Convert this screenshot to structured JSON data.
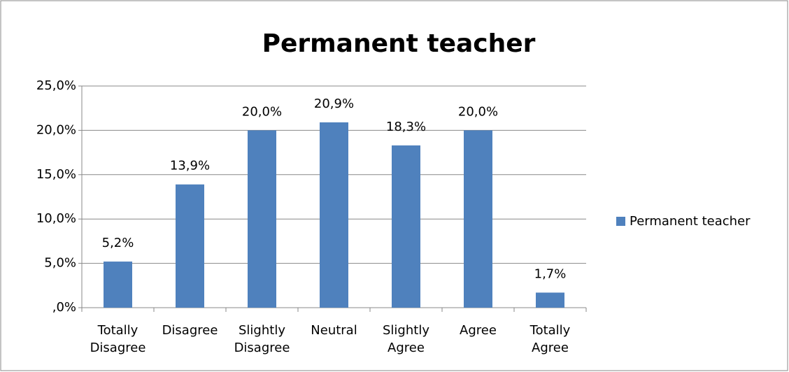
{
  "chart_data": {
    "type": "bar",
    "title": "Permanent teacher",
    "categories": [
      "Totally Disagree",
      "Disagree",
      "Slightly Disagree",
      "Neutral",
      "Slightly Agree",
      "Agree",
      "Totally Agree"
    ],
    "series": [
      {
        "name": "Permanent teacher",
        "color": "#4f81bd",
        "values": [
          5.2,
          13.9,
          20.0,
          20.9,
          18.3,
          20.0,
          1.7
        ],
        "value_labels": [
          "5,2%",
          "13,9%",
          "20,0%",
          "20,9%",
          "18,3%",
          "20,0%",
          "1,7%"
        ]
      }
    ],
    "ylim": [
      0,
      25
    ],
    "yticks": [
      {
        "value": 0,
        "label": ",0%"
      },
      {
        "value": 5,
        "label": "5,0%"
      },
      {
        "value": 10,
        "label": "10,0%"
      },
      {
        "value": 15,
        "label": "15,0%"
      },
      {
        "value": 20,
        "label": "20,0%"
      },
      {
        "value": 25,
        "label": "25,0%"
      }
    ],
    "grid": true,
    "legend": "right"
  }
}
